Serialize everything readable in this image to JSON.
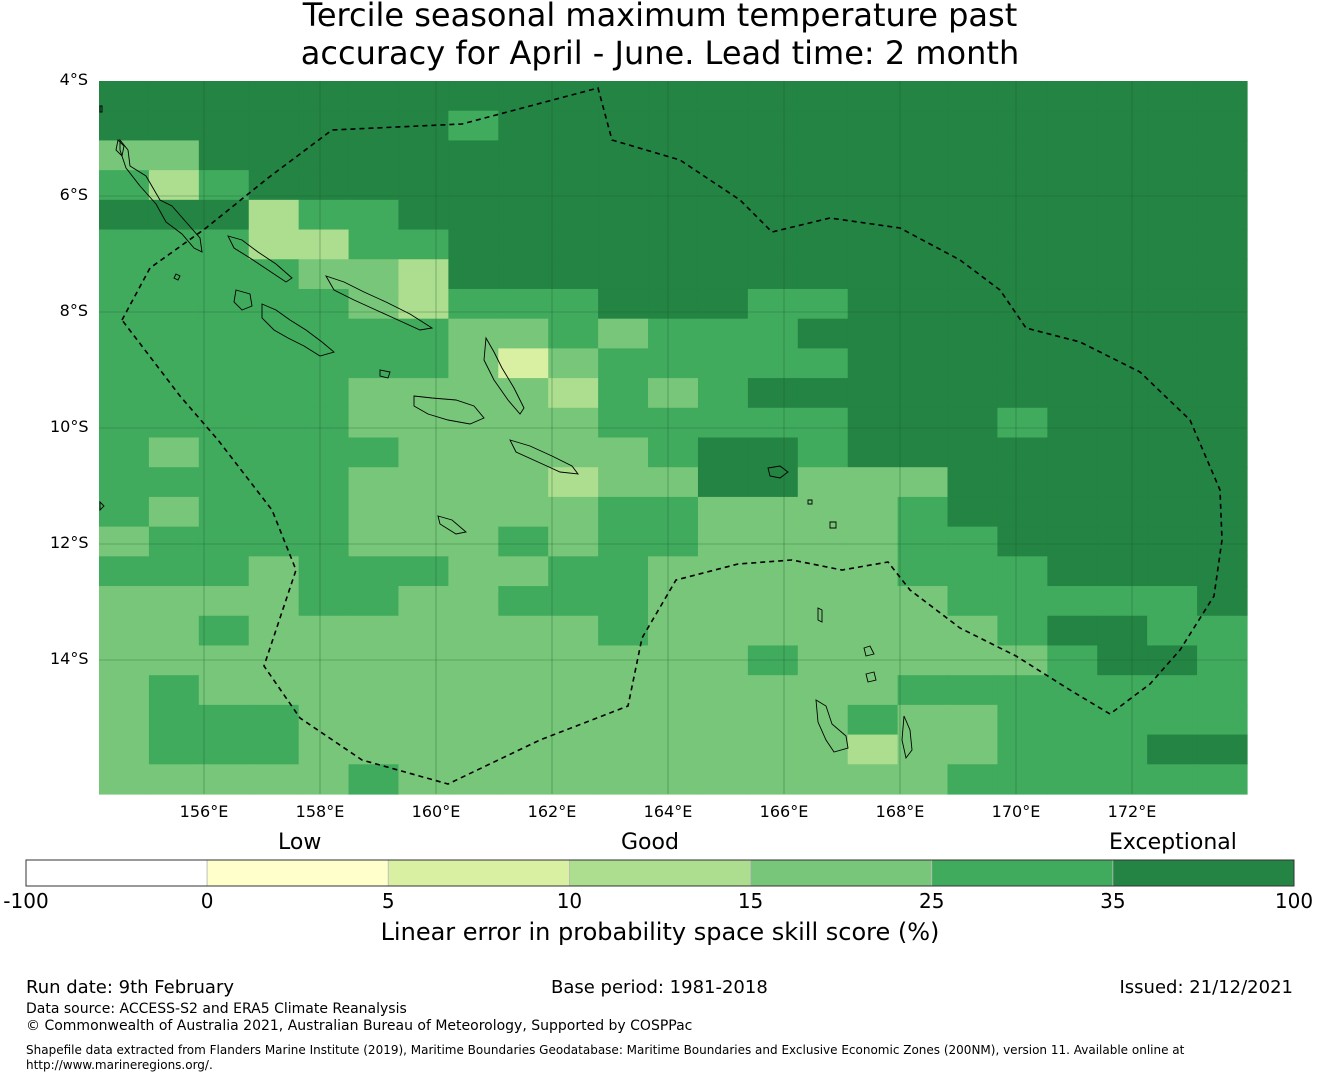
{
  "title": {
    "line1": "Tercile seasonal maximum temperature past",
    "line2": "accuracy for April - June. Lead time: 2 month"
  },
  "map": {
    "lat_labels": [
      "4°S",
      "6°S",
      "8°S",
      "10°S",
      "12°S",
      "14°S"
    ],
    "lon_labels": [
      "156°E",
      "158°E",
      "160°E",
      "162°E",
      "164°E",
      "166°E",
      "168°E",
      "170°E",
      "172°E"
    ],
    "extent": {
      "lon_min": 154.2,
      "lon_max": 174.0,
      "lat_top": -4.0,
      "lat_bottom": -16.3
    },
    "grid_cell_deg": 0.83,
    "note": "Skill score grid coded by colour category index (0=-100..0 … 6=35..100)"
  },
  "colorbar": {
    "category_labels": {
      "low": "Low",
      "good": "Good",
      "exceptional": "Exceptional"
    },
    "ticks": [
      "-100",
      "0",
      "5",
      "10",
      "15",
      "25",
      "35",
      "100"
    ],
    "colors": [
      "#ffffff",
      "#ffffcc",
      "#d9f0a3",
      "#addd8e",
      "#78c679",
      "#41ab5d",
      "#238443"
    ],
    "title": "Linear error in probability space skill score (%)"
  },
  "footer": {
    "run_date": "Run date: 9th February",
    "base_period": "Base period: 1981-2018",
    "issued": "Issued: 21/12/2021",
    "data_source": "Data source: ACCESS-S2 and ERA5 Climate Reanalysis",
    "copyright": "© Commonwealth of Australia 2021, Australian Bureau of Meteorology, Supported by COSPPac",
    "shapefile_line1": "Shapefile data extracted from Flanders Marine Institute (2019), Maritime Boundaries Geodatabase: Maritime Boundaries and Exclusive Economic Zones (200NM), version 11. Available online at",
    "shapefile_line2": "http://www.marineregions.org/."
  },
  "grid": [
    "66666666666666666666666",
    "66666665666666666666666",
    "44666666666666666666666",
    "53566666666666666666666",
    "66635566666666666666666",
    "55533556666666666666666",
    "55554436666666666666666",
    "55555435556665566666666",
    "55555554454555666666666",
    "55555554245555566666666",
    "55555444435456666666666",
    "55555444445555566656666",
    "54555544444566566666666",
    "55555444434466444666666",
    "54555444445544445666666",
    "45555444545544445566666",
    "55545554455444445556666",
    "44445544555444444555556",
    "44544444445444444456655",
    "44444444444445444445665",
    "45444444444444445555555",
    "45554444444444454455555",
    "45554444444444434455566",
    "44444544444444444555555"
  ]
}
